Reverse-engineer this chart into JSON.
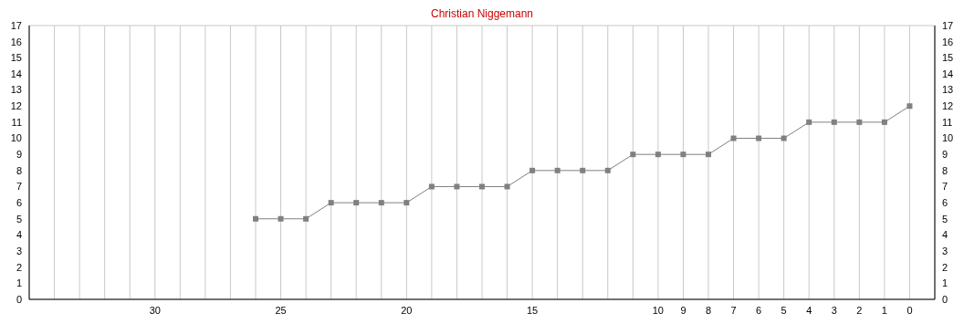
{
  "chart_data": {
    "type": "line",
    "title": "Christian Niggemann",
    "x": [
      26,
      25,
      24,
      23,
      22,
      21,
      20,
      19,
      18,
      17,
      16,
      15,
      14,
      13,
      12,
      11,
      10,
      9,
      8,
      7,
      6,
      5,
      4,
      3,
      2,
      1,
      0
    ],
    "series": [
      {
        "color": "#808080",
        "values": [
          5,
          5,
          5,
          6,
          6,
          6,
          6,
          7,
          7,
          7,
          7,
          8,
          8,
          8,
          8,
          9,
          9,
          9,
          9,
          10,
          10,
          10,
          11,
          11,
          11,
          11,
          12
        ]
      }
    ],
    "xlim": [
      35,
      -1
    ],
    "xticks": [
      {
        "value": 34,
        "label": null
      },
      {
        "value": 33,
        "label": null
      },
      {
        "value": 32,
        "label": null
      },
      {
        "value": 31,
        "label": null
      },
      30,
      {
        "value": 29,
        "label": null
      },
      {
        "value": 28,
        "label": null
      },
      {
        "value": 27,
        "label": null
      },
      {
        "value": 26,
        "label": null
      },
      25,
      {
        "value": 24,
        "label": null
      },
      {
        "value": 23,
        "label": null
      },
      {
        "value": 22,
        "label": null
      },
      {
        "value": 21,
        "label": null
      },
      20,
      {
        "value": 19,
        "label": null
      },
      {
        "value": 18,
        "label": null
      },
      {
        "value": 17,
        "label": null
      },
      {
        "value": 16,
        "label": null
      },
      15,
      {
        "value": 14,
        "label": null
      },
      {
        "value": 13,
        "label": null
      },
      {
        "value": 12,
        "label": null
      },
      {
        "value": 11,
        "label": null
      },
      10,
      9,
      8,
      7,
      6,
      5,
      4,
      3,
      2,
      1,
      0
    ],
    "ylim": [
      0,
      17
    ],
    "yticks": [
      0,
      1,
      2,
      3,
      4,
      5,
      6,
      7,
      8,
      9,
      10,
      11,
      12,
      13,
      14,
      15,
      16,
      17
    ],
    "y2lim": [
      0,
      17
    ],
    "y2ticks": [
      0,
      1,
      2,
      3,
      4,
      5,
      6,
      7,
      8,
      9,
      10,
      11,
      12,
      13,
      14,
      15,
      16,
      17
    ],
    "grid": true,
    "marker": "square",
    "line_style": "solid"
  }
}
